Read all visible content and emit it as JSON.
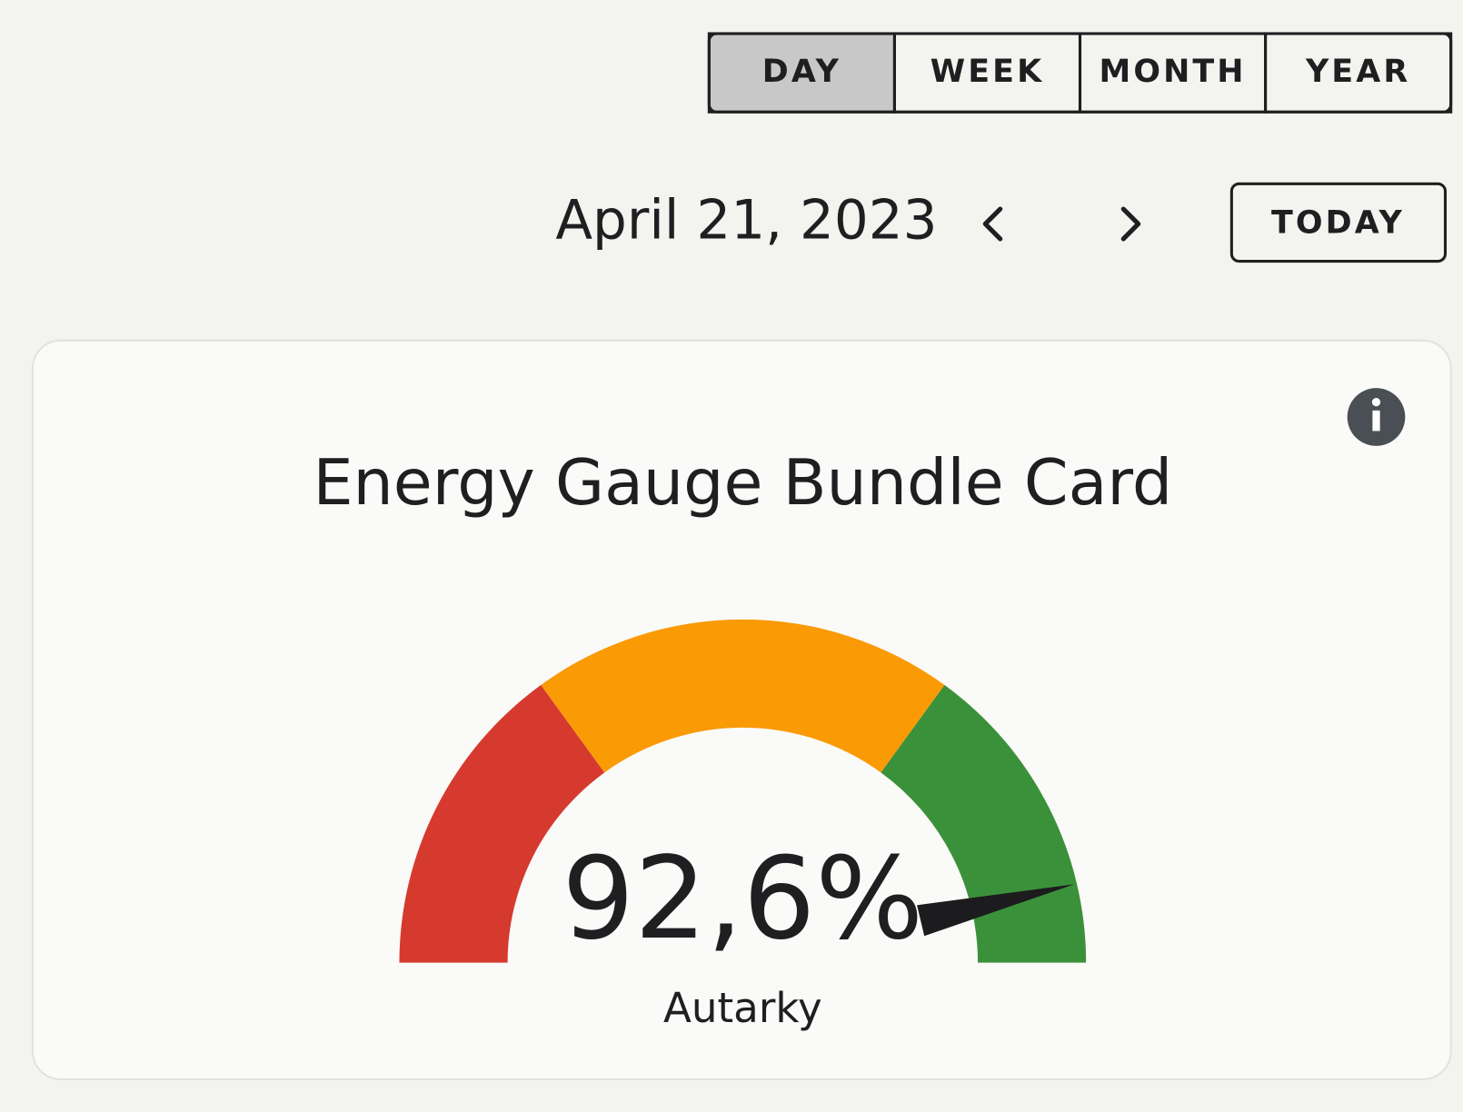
{
  "toolbar": {
    "periods": [
      "DAY",
      "WEEK",
      "MONTH",
      "YEAR"
    ],
    "selected_index": 0,
    "date": "April 21, 2023",
    "today": "TODAY"
  },
  "chart_data": {
    "type": "gauge",
    "title": "Energy Gauge Bundle Card",
    "categories": [
      "Autarky"
    ],
    "values": [
      92.6
    ],
    "value_labels": [
      "92,6%"
    ],
    "ylim": [
      0,
      100
    ],
    "segments": [
      {
        "from": 0,
        "to": 30,
        "color": "#d63a2e"
      },
      {
        "from": 30,
        "to": 70,
        "color": "#fa9a05"
      },
      {
        "from": 70,
        "to": 100,
        "color": "#3b913a"
      }
    ],
    "needle_color": "#1c1c1e"
  }
}
